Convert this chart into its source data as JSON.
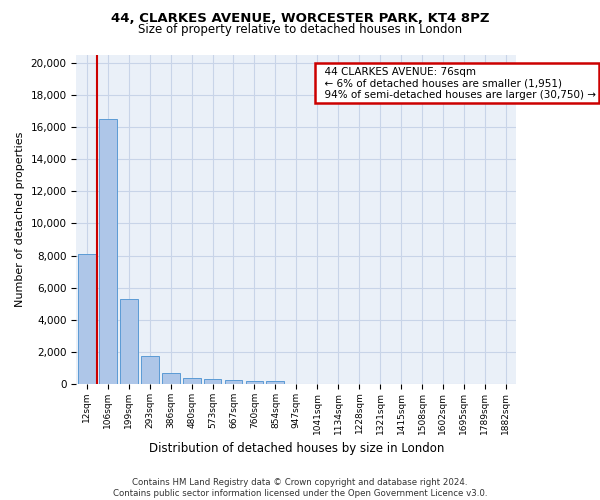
{
  "title1": "44, CLARKES AVENUE, WORCESTER PARK, KT4 8PZ",
  "title2": "Size of property relative to detached houses in London",
  "xlabel": "Distribution of detached houses by size in London",
  "ylabel": "Number of detached properties",
  "categories": [
    "12sqm",
    "106sqm",
    "199sqm",
    "293sqm",
    "386sqm",
    "480sqm",
    "573sqm",
    "667sqm",
    "760sqm",
    "854sqm",
    "947sqm",
    "1041sqm",
    "1134sqm",
    "1228sqm",
    "1321sqm",
    "1415sqm",
    "1508sqm",
    "1602sqm",
    "1695sqm",
    "1789sqm",
    "1882sqm"
  ],
  "values": [
    8100,
    16500,
    5300,
    1750,
    700,
    350,
    280,
    230,
    200,
    170,
    0,
    0,
    0,
    0,
    0,
    0,
    0,
    0,
    0,
    0,
    0
  ],
  "bar_color": "#aec6e8",
  "bar_edge_color": "#5b9bd5",
  "annotation_title": "44 CLARKES AVENUE: 76sqm",
  "annotation_line1": "← 6% of detached houses are smaller (1,951)",
  "annotation_line2": "94% of semi-detached houses are larger (30,750) →",
  "annotation_box_color": "#ffffff",
  "annotation_box_edge": "#cc0000",
  "marker_line_color": "#cc0000",
  "ylim": [
    0,
    20500
  ],
  "yticks": [
    0,
    2000,
    4000,
    6000,
    8000,
    10000,
    12000,
    14000,
    16000,
    18000,
    20000
  ],
  "grid_color": "#c8d4e8",
  "bg_color": "#eaf0f8",
  "footer1": "Contains HM Land Registry data © Crown copyright and database right 2024.",
  "footer2": "Contains public sector information licensed under the Open Government Licence v3.0."
}
